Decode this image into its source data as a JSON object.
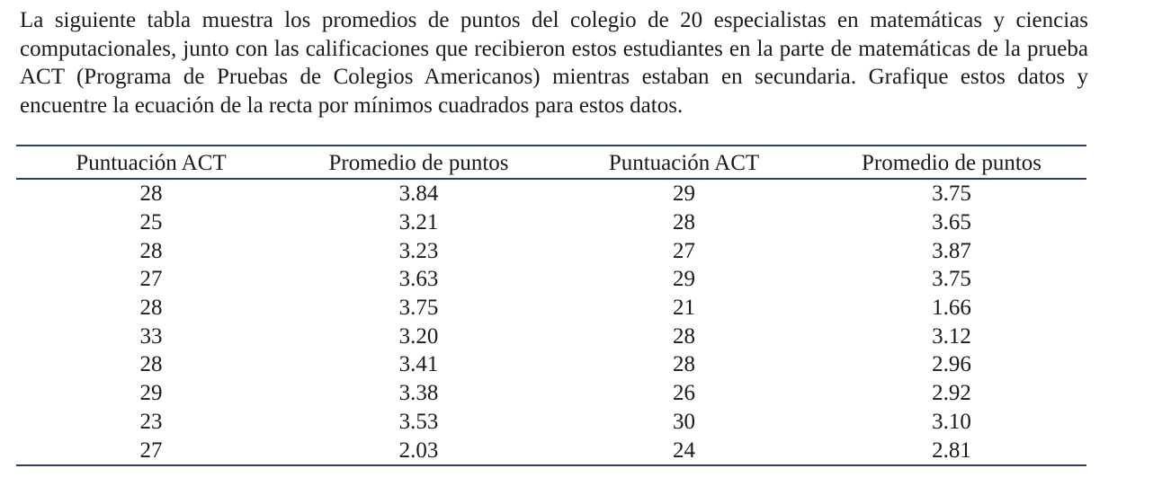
{
  "problem_text": "La siguiente tabla muestra los promedios de puntos del colegio de 20 especialistas en matemáticas y ciencias computacionales, junto con las calificaciones que recibieron estos estudiantes en la parte de matemáticas de la prueba ACT (Programa de Pruebas de Colegios Americanos) mientras estaban en secundaria. Grafique estos datos y encuentre la ecuación de la recta por mínimos cuadrados para estos datos.",
  "table": {
    "headers": [
      "Puntuación ACT",
      "Promedio de puntos",
      "Puntuación ACT",
      "Promedio de puntos"
    ],
    "rows": [
      [
        "28",
        "3.84",
        "29",
        "3.75"
      ],
      [
        "25",
        "3.21",
        "28",
        "3.65"
      ],
      [
        "28",
        "3.23",
        "27",
        "3.87"
      ],
      [
        "27",
        "3.63",
        "29",
        "3.75"
      ],
      [
        "28",
        "3.75",
        "21",
        "1.66"
      ],
      [
        "33",
        "3.20",
        "28",
        "3.12"
      ],
      [
        "28",
        "3.41",
        "28",
        "2.96"
      ],
      [
        "29",
        "3.38",
        "26",
        "2.92"
      ],
      [
        "23",
        "3.53",
        "30",
        "3.10"
      ],
      [
        "27",
        "2.03",
        "24",
        "2.81"
      ]
    ]
  }
}
